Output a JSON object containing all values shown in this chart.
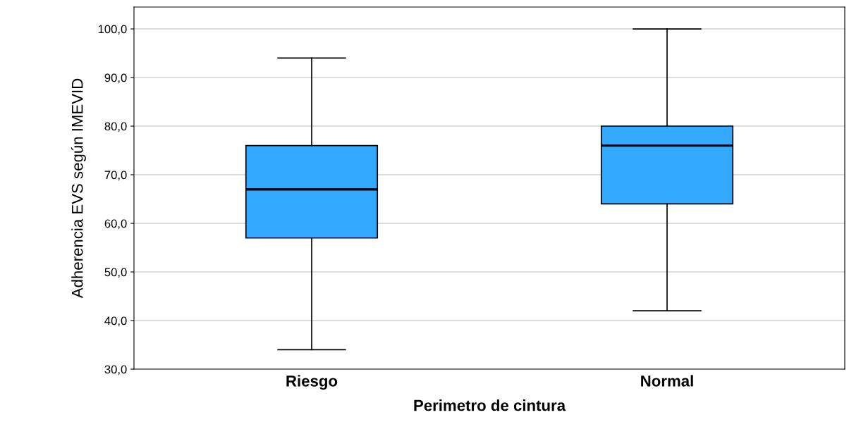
{
  "chart_data": {
    "type": "box",
    "xlabel": "Perimetro de cintura",
    "ylabel": "Adherencia EVS según IMEVID",
    "categories": [
      "Riesgo",
      "Normal"
    ],
    "boxes": [
      {
        "low": 34,
        "q1": 57,
        "median": 67,
        "q3": 76,
        "high": 94
      },
      {
        "low": 42,
        "q1": 64,
        "median": 76,
        "q3": 80,
        "high": 100
      }
    ],
    "color": "#33aaff",
    "ylim": [
      30,
      104.5
    ],
    "yticks": [
      {
        "value": 30,
        "label": "30,0"
      },
      {
        "value": 40,
        "label": "40,0"
      },
      {
        "value": 50,
        "label": "50,0"
      },
      {
        "value": 60,
        "label": "60,0"
      },
      {
        "value": 70,
        "label": "70,0"
      },
      {
        "value": 80,
        "label": "80,0"
      },
      {
        "value": 90,
        "label": "90,0"
      },
      {
        "value": 100,
        "label": "100,0"
      }
    ],
    "grid": "y"
  }
}
